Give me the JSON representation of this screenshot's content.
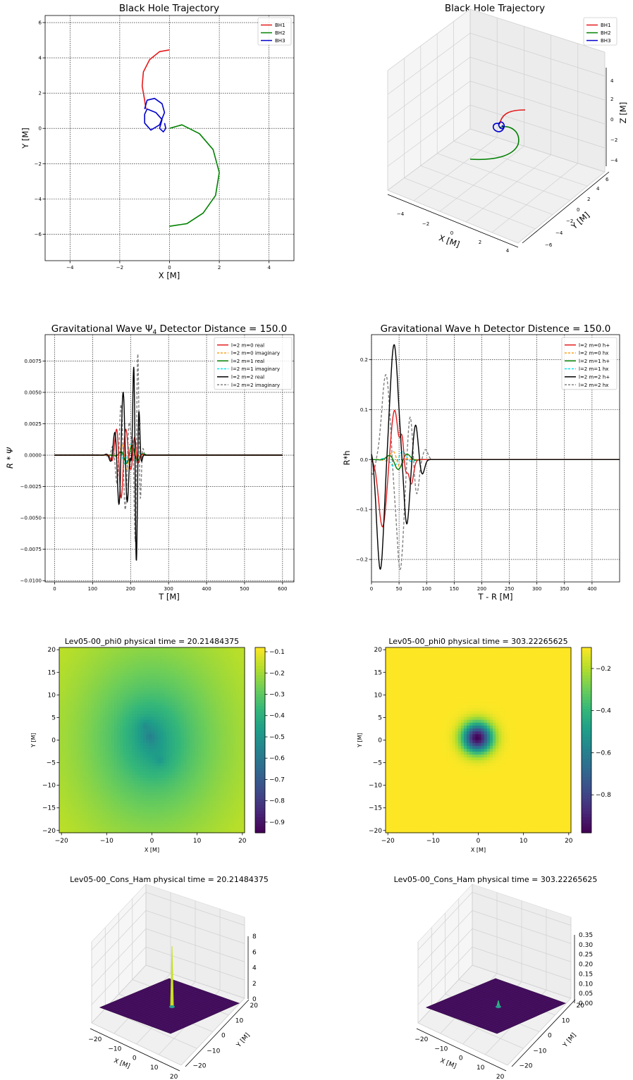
{
  "chart_data": [
    {
      "type": "line",
      "title": "Black Hole Trajectory",
      "xlabel": "X [M]",
      "ylabel": "Y [M]",
      "xlim": [
        -5,
        5
      ],
      "ylim": [
        -7.5,
        6.4
      ],
      "xticks": [
        "−4",
        "−2",
        "0",
        "2",
        "4"
      ],
      "yticks": [
        "−6",
        "−4",
        "−2",
        "0",
        "2",
        "4",
        "6"
      ],
      "grid": true,
      "legend_position": "top-right",
      "series": [
        {
          "name": "BH1",
          "color": "#e41a1c",
          "x": [
            0,
            -0.4,
            -0.8,
            -1.05,
            -1.1,
            -1.0,
            -0.95
          ],
          "y": [
            4.45,
            4.35,
            3.9,
            3.2,
            2.4,
            1.6,
            1.1
          ]
        },
        {
          "name": "BH2",
          "color": "#008000",
          "x": [
            0,
            0.5,
            1.2,
            1.75,
            2.0,
            1.85,
            1.35,
            0.7,
            0
          ],
          "y": [
            0,
            0.2,
            -0.3,
            -1.2,
            -2.5,
            -3.8,
            -4.8,
            -5.4,
            -5.55
          ]
        },
        {
          "name": "BH3",
          "color": "#0000cc",
          "x": [
            -1.0,
            -0.9,
            -0.6,
            -0.3,
            -0.2,
            -0.4,
            -0.75,
            -1.0,
            -1.0,
            -0.9,
            -0.55,
            -0.3,
            -0.4,
            -0.25,
            -0.15,
            -0.2
          ],
          "y": [
            1.1,
            1.6,
            1.7,
            1.4,
            0.9,
            0.2,
            -0.1,
            0.3,
            0.8,
            1.1,
            0.9,
            0.5,
            0.0,
            -0.2,
            0.0,
            0.3
          ]
        }
      ]
    },
    {
      "type": "line",
      "title": "Black Hole Trajectory",
      "xlabel": "X [M]",
      "ylabel": "Y [M]",
      "zlabel": "Z [M]",
      "xticks": [
        "−4",
        "−2",
        "0",
        "2",
        "4"
      ],
      "yticks": [
        "−6",
        "−4",
        "−2",
        "0",
        "2",
        "4",
        "6"
      ],
      "zticks": [
        "−4",
        "−2",
        "0",
        "2",
        "4"
      ],
      "legend_position": "top-right",
      "series": [
        {
          "name": "BH1",
          "color": "#e41a1c"
        },
        {
          "name": "BH2",
          "color": "#008000"
        },
        {
          "name": "BH3",
          "color": "#0000cc"
        }
      ]
    },
    {
      "type": "line",
      "title": "Gravitational Wave Ψ",
      "title_sub": "4",
      "title_rest": "   Detector Distance =  150.0",
      "xlabel": "T [M]",
      "ylabel": "R * Ψ",
      "xlim": [
        -25,
        630
      ],
      "ylim": [
        -0.0101,
        0.0096
      ],
      "xticks": [
        "0",
        "100",
        "200",
        "300",
        "400",
        "500",
        "600"
      ],
      "yticks": [
        "−0.0100",
        "−0.0075",
        "−0.0050",
        "−0.0025",
        "0.0000",
        "0.0025",
        "0.0050",
        "0.0075"
      ],
      "grid": true,
      "legend_position": "top-right",
      "series": [
        {
          "name": "l=2 m=0 real",
          "color": "#e41a1c",
          "dash": false
        },
        {
          "name": "l=2 m=0 imaginary",
          "color": "#ff9f1c",
          "dash": true
        },
        {
          "name": "l=2 m=1 real",
          "color": "#008000",
          "dash": false
        },
        {
          "name": "l=2 m=1 imaginary",
          "color": "#00e5ee",
          "dash": true
        },
        {
          "name": "l=2 m=2 real",
          "color": "#000000",
          "dash": false
        },
        {
          "name": "l=2 m=2 imaginary",
          "color": "#808080",
          "dash": true
        }
      ]
    },
    {
      "type": "line",
      "title": "Gravitational Wave h   Detector Distence = 150.0",
      "xlabel": "T - R [M]",
      "ylabel": "R*h",
      "xlim": [
        0,
        450
      ],
      "ylim": [
        -0.245,
        0.25
      ],
      "xticks": [
        "0",
        "50",
        "100",
        "150",
        "200",
        "250",
        "300",
        "350",
        "400"
      ],
      "yticks": [
        "−0.2",
        "−0.1",
        "0.0",
        "0.1",
        "0.2"
      ],
      "grid": true,
      "legend_position": "top-right",
      "series": [
        {
          "name": "l=2 m=0 h+",
          "color": "#e41a1c",
          "dash": false
        },
        {
          "name": "l=2 m=0 hx",
          "color": "#ff9f1c",
          "dash": true
        },
        {
          "name": "l=2 m=1 h+",
          "color": "#008000",
          "dash": false
        },
        {
          "name": "l=2 m=1 hx",
          "color": "#00e5ee",
          "dash": true
        },
        {
          "name": "l=2 m=2 h+",
          "color": "#000000",
          "dash": false
        },
        {
          "name": "l=2 m=2 hx",
          "color": "#808080",
          "dash": true
        }
      ]
    },
    {
      "type": "heatmap",
      "title": "Lev05-00_phi0  physical time = 20.21484375",
      "xlabel": "X [M]",
      "ylabel": "Y [M]",
      "xlim": [
        -20.5,
        20.5
      ],
      "ylim": [
        -20.5,
        20.5
      ],
      "xticks": [
        "−20",
        "−10",
        "0",
        "10",
        "20"
      ],
      "yticks": [
        "−20",
        "−15",
        "−10",
        "−5",
        "0",
        "5",
        "10",
        "15",
        "20"
      ],
      "colorbar_ticks": [
        "−0.9",
        "−0.8",
        "−0.7",
        "−0.6",
        "−0.5",
        "−0.4",
        "−0.3",
        "−0.2",
        "−0.1"
      ],
      "value_range": [
        -0.95,
        -0.08
      ],
      "colormap": "viridis",
      "sources": [
        {
          "x": -1.5,
          "y": 3.2
        },
        {
          "x": -0.5,
          "y": 0.8
        },
        {
          "x": 1.8,
          "y": -4.5
        }
      ]
    },
    {
      "type": "heatmap",
      "title": "Lev05-00_phi0  physical time = 303.22265625",
      "xlabel": "X [M]",
      "ylabel": "Y [M]",
      "xlim": [
        -20.5,
        20.5
      ],
      "ylim": [
        -20.5,
        20.5
      ],
      "xticks": [
        "−20",
        "−10",
        "0",
        "10",
        "20"
      ],
      "yticks": [
        "−20",
        "−15",
        "−10",
        "−5",
        "0",
        "5",
        "10",
        "15",
        "20"
      ],
      "colorbar_ticks": [
        "−0.8",
        "−0.6",
        "−0.4",
        "−0.2"
      ],
      "value_range": [
        -0.98,
        -0.1
      ],
      "colormap": "viridis",
      "sources": [
        {
          "x": -0.2,
          "y": 0.5
        }
      ]
    },
    {
      "type": "surface",
      "title": "Lev05-00_Cons_Ham  physical time = 20.21484375",
      "xlabel": "X [M]",
      "ylabel": "Y [M]",
      "xticks": [
        "−20",
        "−10",
        "0",
        "10",
        "20"
      ],
      "yticks": [
        "−20",
        "−10",
        "0",
        "10",
        "20"
      ],
      "zticks": [
        "0",
        "2",
        "4",
        "6",
        "8"
      ],
      "peak": 8.5
    },
    {
      "type": "surface",
      "title": "Lev05-00_Cons_Ham  physical time = 303.22265625",
      "xlabel": "X [M]",
      "ylabel": "Y [M]",
      "xticks": [
        "−20",
        "−10",
        "0",
        "10",
        "20"
      ],
      "yticks": [
        "−20",
        "−10",
        "0",
        "10",
        "20"
      ],
      "zticks": [
        "0.00",
        "0.05",
        "0.10",
        "0.15",
        "0.20",
        "0.25",
        "0.30",
        "0.35"
      ],
      "peak": 0.04
    }
  ]
}
